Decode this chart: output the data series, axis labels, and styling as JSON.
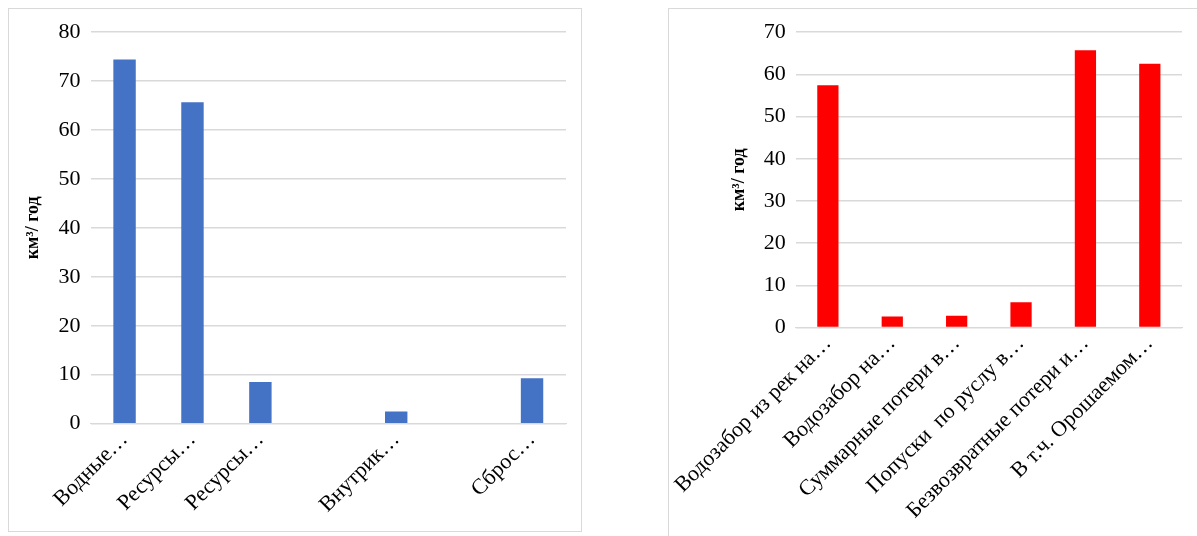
{
  "chart_data": [
    {
      "type": "bar",
      "ylabel": "км³/ год",
      "categories": [
        "Водные…",
        "Ресурсы…",
        "Ресурсы…",
        null,
        "Внутрик…",
        null,
        "Сброс…"
      ],
      "series": [
        {
          "color": "#4472c4",
          "values": [
            74.4,
            65.7,
            8.5,
            null,
            2.5,
            null,
            9.3
          ]
        }
      ],
      "ylim": [
        0,
        80
      ],
      "yticks": [
        0,
        10,
        20,
        30,
        40,
        50,
        60,
        70,
        80
      ],
      "grid": "y",
      "legend": false
    },
    {
      "type": "bar",
      "ylabel": "км³/ год",
      "categories": [
        "Водозабор из рек на…",
        "Водозабор на…",
        "Суммарные потери в…",
        "Попуски  по руслу в…",
        "Безвозвратные потери и…",
        "В т.ч. Орошаемом…"
      ],
      "series": [
        {
          "color": "#ff0000",
          "values": [
            57.4,
            2.6,
            2.8,
            6.0,
            65.7,
            62.5
          ]
        }
      ],
      "ylim": [
        0,
        70
      ],
      "yticks": [
        0,
        10,
        20,
        30,
        40,
        50,
        60,
        70
      ],
      "grid": "y",
      "legend": false
    }
  ]
}
